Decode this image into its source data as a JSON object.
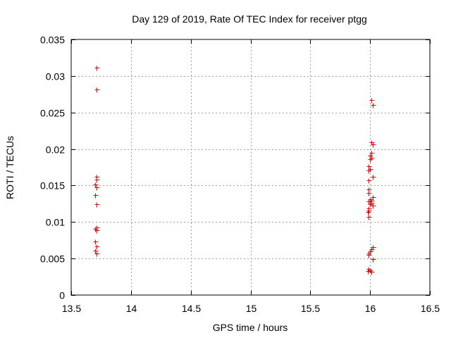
{
  "chart_data": {
    "type": "scatter",
    "title": "Day 129 of 2019, Rate Of TEC Index for receiver ptgg",
    "xlabel": "GPS time / hours",
    "ylabel": "ROTI / TECUs",
    "xlim": [
      13.5,
      16.5
    ],
    "ylim": [
      0,
      0.035
    ],
    "xticks": [
      13.5,
      14,
      14.5,
      15,
      15.5,
      16,
      16.5
    ],
    "xtick_labels": [
      "13.5",
      "14",
      "14.5",
      "15",
      "15.5",
      "16",
      "16.5"
    ],
    "yticks": [
      0,
      0.005,
      0.01,
      0.015,
      0.02,
      0.025,
      0.03,
      0.035
    ],
    "ytick_labels": [
      "0",
      "0.005",
      "0.01",
      "0.015",
      "0.02",
      "0.025",
      "0.03",
      "0.035"
    ],
    "grid": true,
    "marker": "+",
    "color": "#e00000",
    "series": [
      {
        "name": "ROTI",
        "points": [
          [
            13.71,
            0.0311
          ],
          [
            13.71,
            0.0282
          ],
          [
            13.71,
            0.0162
          ],
          [
            13.71,
            0.0158
          ],
          [
            13.7,
            0.0151
          ],
          [
            13.71,
            0.0148
          ],
          [
            13.7,
            0.0137
          ],
          [
            13.71,
            0.0124
          ],
          [
            13.71,
            0.0093
          ],
          [
            13.7,
            0.0091
          ],
          [
            13.71,
            0.0089
          ],
          [
            13.7,
            0.0073
          ],
          [
            13.71,
            0.0067
          ],
          [
            13.7,
            0.0061
          ],
          [
            13.71,
            0.0057
          ],
          [
            16.01,
            0.0267
          ],
          [
            16.02,
            0.026
          ],
          [
            16.01,
            0.0209
          ],
          [
            16.02,
            0.0206
          ],
          [
            16.01,
            0.0195
          ],
          [
            16.0,
            0.0191
          ],
          [
            16.01,
            0.0188
          ],
          [
            16.0,
            0.0186
          ],
          [
            15.99,
            0.0176
          ],
          [
            16.0,
            0.0173
          ],
          [
            15.99,
            0.0171
          ],
          [
            16.02,
            0.0162
          ],
          [
            15.99,
            0.0157
          ],
          [
            15.99,
            0.0145
          ],
          [
            15.99,
            0.014
          ],
          [
            16.02,
            0.0134
          ],
          [
            16.0,
            0.0131
          ],
          [
            16.01,
            0.0129
          ],
          [
            15.99,
            0.0128
          ],
          [
            16.01,
            0.0126
          ],
          [
            16.0,
            0.0124
          ],
          [
            16.02,
            0.0122
          ],
          [
            15.99,
            0.0119
          ],
          [
            15.99,
            0.0116
          ],
          [
            15.98,
            0.0114
          ],
          [
            15.99,
            0.0107
          ],
          [
            16.02,
            0.0066
          ],
          [
            16.01,
            0.0063
          ],
          [
            16.0,
            0.006
          ],
          [
            15.99,
            0.0057
          ],
          [
            15.99,
            0.0055
          ],
          [
            16.02,
            0.0049
          ],
          [
            15.99,
            0.0036
          ],
          [
            16.0,
            0.0034
          ],
          [
            15.98,
            0.0033
          ],
          [
            16.01,
            0.0032
          ]
        ]
      }
    ]
  }
}
